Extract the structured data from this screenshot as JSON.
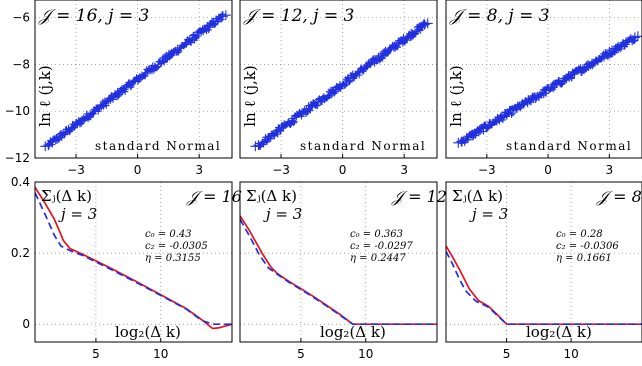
{
  "chart_data": [
    {
      "type": "scatter",
      "panel": "top-left",
      "title_label": "𝒥 = 16,  j = 3",
      "xlabel": "standard Normal",
      "ylabel": "ln ℓ (j,k)",
      "xlim": [
        -5,
        4.6
      ],
      "ylim": [
        -12,
        -5.25
      ],
      "xticks": [
        -3,
        0,
        3
      ],
      "xtick_labels": [
        "−3",
        "0",
        "3"
      ],
      "yticks": [
        -6,
        -8,
        -10,
        -12
      ],
      "ytick_labels": [
        "−6",
        "−8",
        "−10",
        "−12"
      ],
      "grid": true,
      "marker": "+",
      "color": "#2030e0",
      "line": {
        "x0": -4.35,
        "x1": 4.15,
        "y0": -11.45,
        "y1": -5.95
      }
    },
    {
      "type": "scatter",
      "panel": "top-middle",
      "title_label": "𝒥 = 12,  j = 3",
      "xlabel": "standard Normal",
      "ylabel": "ln ℓ (j,k)",
      "xlim": [
        -5,
        4.6
      ],
      "ylim": [
        -12,
        -5.25
      ],
      "xticks": [
        -3,
        0,
        3
      ],
      "xtick_labels": [
        "−3",
        "0",
        "3"
      ],
      "grid": true,
      "marker": "+",
      "color": "#2030e0",
      "line": {
        "x0": -4.1,
        "x1": 4.0,
        "y0": -11.45,
        "y1": -6.3
      }
    },
    {
      "type": "scatter",
      "panel": "top-right",
      "title_label": "𝒥 = 8,  j = 3",
      "xlabel": "standard Normal",
      "ylabel": "ln ℓ (j,k)",
      "xlim": [
        -5,
        4.6
      ],
      "ylim": [
        -12,
        -5.25
      ],
      "xticks": [
        -3,
        0,
        3
      ],
      "xtick_labels": [
        "−3",
        "0",
        "3"
      ],
      "grid": true,
      "marker": "+",
      "color": "#2030e0",
      "line": {
        "x0": -4.25,
        "x1": 4.25,
        "y0": -11.3,
        "y1": -6.85
      }
    },
    {
      "type": "line",
      "panel": "bottom-left",
      "label_sigma": "Σⱼ(Δ k)",
      "label_j": "j = 3",
      "label_J": "𝒥 = 16",
      "xlabel": "log₂(Δ k)",
      "params": [
        "c₀ = 0.43",
        "c₂ = -0.0305",
        "η  = 0.3155"
      ],
      "xlim": [
        0.3,
        15.5
      ],
      "ylim": [
        -0.05,
        0.4
      ],
      "xticks": [
        5,
        10
      ],
      "xtick_labels": [
        "5",
        "10"
      ],
      "yticks": [
        0.4,
        0.2,
        0
      ],
      "ytick_labels": [
        "0.4",
        "0.2",
        "0"
      ],
      "grid": true,
      "series": [
        {
          "color": "#e8101a",
          "style": "solid",
          "x": [
            0.3,
            1.0,
            1.8,
            2.5,
            3.0,
            4,
            6,
            8,
            10,
            12,
            13.2,
            14,
            14.5,
            15.5
          ],
          "y": [
            0.385,
            0.345,
            0.295,
            0.235,
            0.213,
            0.196,
            0.16,
            0.122,
            0.083,
            0.043,
            0.012,
            -0.012,
            -0.01,
            0
          ]
        },
        {
          "color": "#2030e0",
          "style": "dashed",
          "x": [
            0.3,
            1.0,
            1.8,
            2.3,
            3.0,
            4,
            6,
            8,
            10,
            12,
            13.2,
            14,
            15.5
          ],
          "y": [
            0.37,
            0.315,
            0.25,
            0.22,
            0.207,
            0.193,
            0.157,
            0.12,
            0.081,
            0.042,
            0.01,
            0,
            0
          ]
        }
      ]
    },
    {
      "type": "line",
      "panel": "bottom-middle",
      "label_sigma": "Σⱼ(Δ k)",
      "label_j": "j = 3",
      "label_J": "𝒥 = 12",
      "xlabel": "log₂(Δ k)",
      "params": [
        "c₀ = 0.363",
        "c₂ = -0.0297",
        "η  = 0.2447"
      ],
      "xlim": [
        0.3,
        15.5
      ],
      "ylim": [
        -0.05,
        0.4
      ],
      "xticks": [
        5,
        10
      ],
      "xtick_labels": [
        "5",
        "10"
      ],
      "grid": true,
      "series": [
        {
          "color": "#e8101a",
          "style": "solid",
          "x": [
            0.3,
            1.0,
            2.0,
            2.7,
            3.2,
            4,
            5,
            6,
            7,
            8,
            9,
            15.5
          ],
          "y": [
            0.305,
            0.265,
            0.2,
            0.16,
            0.142,
            0.122,
            0.1,
            0.077,
            0.053,
            0.028,
            0,
            0
          ]
        },
        {
          "color": "#2030e0",
          "style": "dashed",
          "x": [
            0.3,
            1.0,
            1.8,
            2.5,
            3.2,
            4,
            5,
            6,
            7,
            8,
            9,
            15.5
          ],
          "y": [
            0.295,
            0.25,
            0.195,
            0.158,
            0.14,
            0.12,
            0.098,
            0.075,
            0.051,
            0.026,
            0,
            0
          ]
        }
      ]
    },
    {
      "type": "line",
      "panel": "bottom-right",
      "label_sigma": "Σⱼ(Δ k)",
      "label_j": "j = 3",
      "label_J": "𝒥 = 8",
      "xlabel": "log₂(Δ k)",
      "params": [
        "c₀ = 0.28",
        "c₂ = -0.0306",
        "η  = 0.1661"
      ],
      "xlim": [
        0.3,
        15.5
      ],
      "ylim": [
        -0.05,
        0.4
      ],
      "xticks": [
        5,
        10
      ],
      "xtick_labels": [
        "5",
        "10"
      ],
      "grid": true,
      "series": [
        {
          "color": "#e8101a",
          "style": "solid",
          "x": [
            0.3,
            0.8,
            1.4,
            2.1,
            2.8,
            3.6,
            4.3,
            5.0,
            15.5
          ],
          "y": [
            0.22,
            0.19,
            0.15,
            0.1,
            0.067,
            0.05,
            0.026,
            0,
            0
          ]
        },
        {
          "color": "#2030e0",
          "style": "dashed",
          "x": [
            0.3,
            0.8,
            1.3,
            1.8,
            2.6,
            3.6,
            4.3,
            5.0,
            15.5
          ],
          "y": [
            0.205,
            0.17,
            0.13,
            0.095,
            0.065,
            0.048,
            0.024,
            0,
            0
          ]
        }
      ]
    }
  ]
}
